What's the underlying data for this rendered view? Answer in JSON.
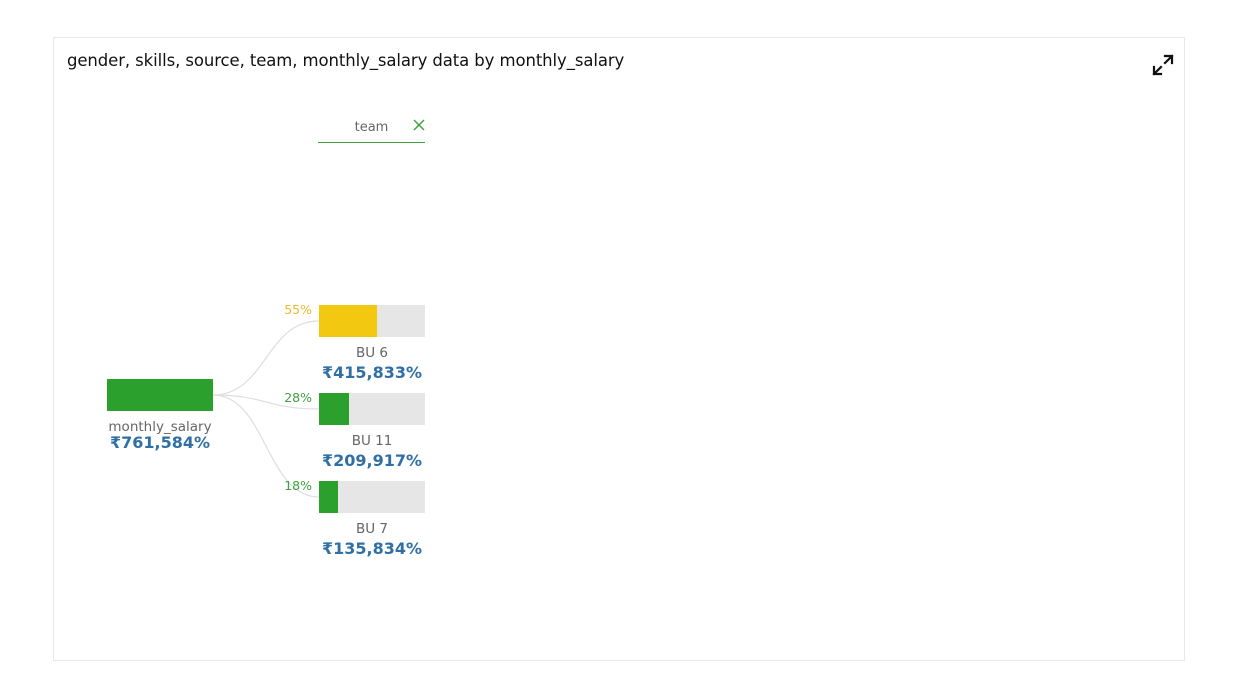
{
  "title": "gender, skills, source, team, monthly_salary data by monthly_salary",
  "icons": {
    "expand": "expand-arrows-icon",
    "close": "close-x-icon"
  },
  "colors": {
    "primary_green": "#2ca02c",
    "highlight_yellow": "#f2c811",
    "value_blue": "#2f6fa5",
    "track_gray": "#e6e6e6"
  },
  "level": {
    "label": "team"
  },
  "root": {
    "name": "monthly_salary",
    "value": "₹761,584%"
  },
  "chart_data": {
    "type": "decomposition-tree",
    "root": {
      "name": "monthly_salary",
      "value": 761584
    },
    "breakdown_by": "team",
    "nodes": [
      {
        "name": "BU 6",
        "value": 415833,
        "value_label": "₹415,833%",
        "share": 0.55,
        "share_label": "55%",
        "color": "#f2c811"
      },
      {
        "name": "BU 11",
        "value": 209917,
        "value_label": "₹209,917%",
        "share": 0.28,
        "share_label": "28%",
        "color": "#2ca02c"
      },
      {
        "name": "BU 7",
        "value": 135834,
        "value_label": "₹135,834%",
        "share": 0.18,
        "share_label": "18%",
        "color": "#2ca02c"
      }
    ]
  }
}
